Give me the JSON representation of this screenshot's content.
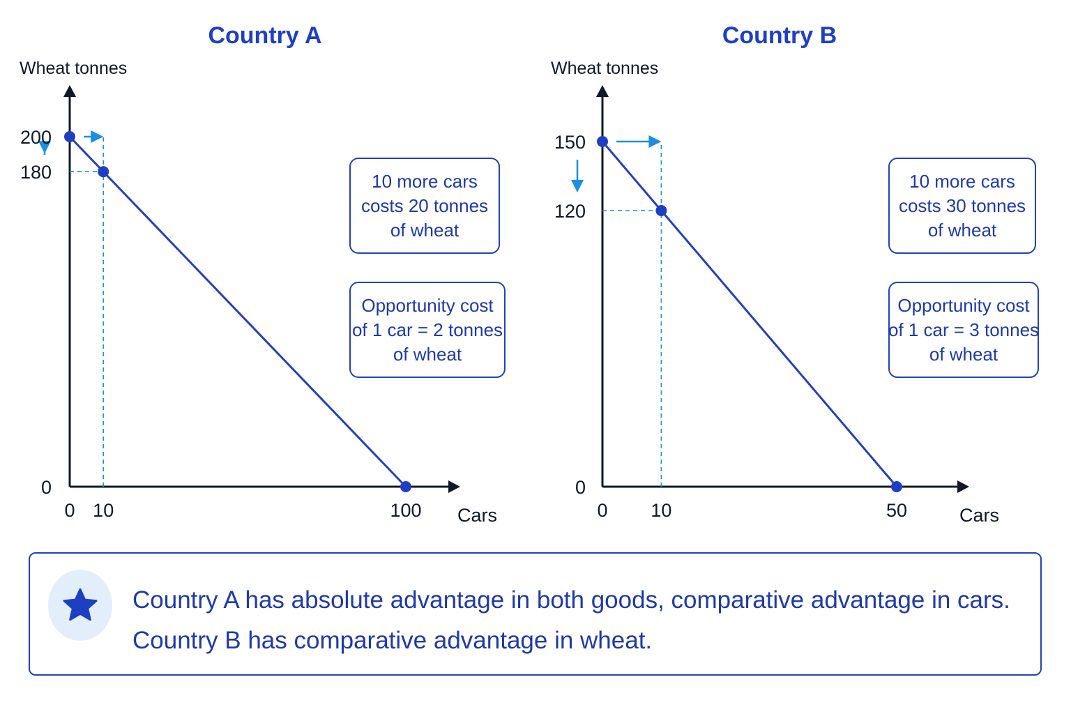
{
  "colors": {
    "title": "#1e3fc4",
    "line": "#2541b8",
    "point": "#1e3fc4",
    "arrow": "#1b8fe0",
    "axis": "#111827",
    "note_text": "#1e3aa8",
    "badge_bg": "#e3eefb"
  },
  "chart_data": [
    {
      "type": "line",
      "title": "Country A",
      "ylabel": "Wheat tonnes",
      "xlabel": "Cars",
      "xlim": [
        0,
        100
      ],
      "ylim": [
        0,
        200
      ],
      "x_ticks": [
        "0",
        "10",
        "100"
      ],
      "y_ticks": [
        "200",
        "180",
        "0"
      ],
      "series": [
        {
          "points": [
            {
              "x": 0,
              "y": 200
            },
            {
              "x": 10,
              "y": 180
            },
            {
              "x": 100,
              "y": 0
            }
          ]
        }
      ],
      "guide_point": {
        "x": 10,
        "y": 180
      },
      "annotations": [
        {
          "lines": [
            "10 more cars",
            "costs 20 tonnes",
            "of wheat"
          ]
        },
        {
          "lines": [
            "Opportunity cost",
            "of 1 car = 2 tonnes",
            "of wheat"
          ]
        }
      ]
    },
    {
      "type": "line",
      "title": "Country B",
      "ylabel": "Wheat tonnes",
      "xlabel": "Cars",
      "xlim": [
        0,
        50
      ],
      "ylim": [
        0,
        150
      ],
      "x_ticks": [
        "0",
        "10",
        "50"
      ],
      "y_ticks": [
        "150",
        "120",
        "0"
      ],
      "series": [
        {
          "points": [
            {
              "x": 0,
              "y": 150
            },
            {
              "x": 10,
              "y": 120
            },
            {
              "x": 50,
              "y": 0
            }
          ]
        }
      ],
      "guide_point": {
        "x": 10,
        "y": 120
      },
      "annotations": [
        {
          "lines": [
            "10 more cars",
            "costs 30 tonnes",
            "of wheat"
          ]
        },
        {
          "lines": [
            "Opportunity cost",
            "of 1 car = 3 tonnes",
            "of wheat"
          ]
        }
      ]
    }
  ],
  "summary": {
    "icon": "star-icon",
    "line1": "Country A has absolute advantage in both goods, comparative advantage in cars.",
    "line2": "Country B has comparative advantage in wheat."
  }
}
